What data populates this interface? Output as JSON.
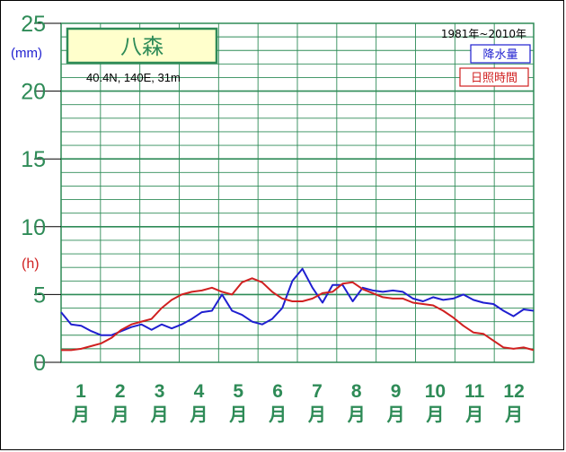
{
  "chart_data": {
    "type": "line",
    "station": "八森",
    "coordinates": "40.4N,  140E,  31m",
    "period": "1981年~2010年",
    "unit_precip": "(mm)",
    "unit_sunshine": "(h)",
    "yticks": [
      "0",
      "5",
      "10",
      "15",
      "20",
      "25"
    ],
    "ylim": [
      0,
      25
    ],
    "month_numbers": [
      "1",
      "2",
      "3",
      "4",
      "5",
      "6",
      "7",
      "8",
      "9",
      "10",
      "11",
      "12"
    ],
    "month_suffix": "月",
    "series": [
      {
        "name": "降水量",
        "color": "#1f1fd0",
        "values": [
          3.7,
          2.8,
          2.7,
          2.3,
          2.0,
          2.0,
          2.3,
          2.6,
          2.8,
          2.4,
          2.8,
          2.5,
          2.8,
          3.2,
          3.7,
          3.8,
          5.0,
          3.8,
          3.5,
          3.0,
          2.8,
          3.2,
          4.0,
          6.0,
          6.9,
          5.5,
          4.4,
          5.7,
          5.7,
          4.5,
          5.5,
          5.3,
          5.2,
          5.3,
          5.2,
          4.7,
          4.5,
          4.8,
          4.6,
          4.7,
          5.0,
          4.6,
          4.4,
          4.3,
          3.8,
          3.4,
          3.9,
          3.8
        ]
      },
      {
        "name": "日照時間",
        "color": "#d02020",
        "values": [
          0.9,
          0.9,
          1.0,
          1.2,
          1.4,
          1.8,
          2.4,
          2.8,
          3.0,
          3.2,
          4.0,
          4.6,
          5.0,
          5.2,
          5.3,
          5.5,
          5.2,
          5.0,
          5.9,
          6.2,
          5.9,
          5.2,
          4.7,
          4.5,
          4.5,
          4.7,
          5.1,
          5.2,
          5.8,
          5.9,
          5.4,
          5.1,
          4.8,
          4.7,
          4.7,
          4.4,
          4.3,
          4.2,
          3.8,
          3.3,
          2.7,
          2.2,
          2.1,
          1.6,
          1.1,
          1.0,
          1.1,
          0.9
        ]
      }
    ]
  }
}
